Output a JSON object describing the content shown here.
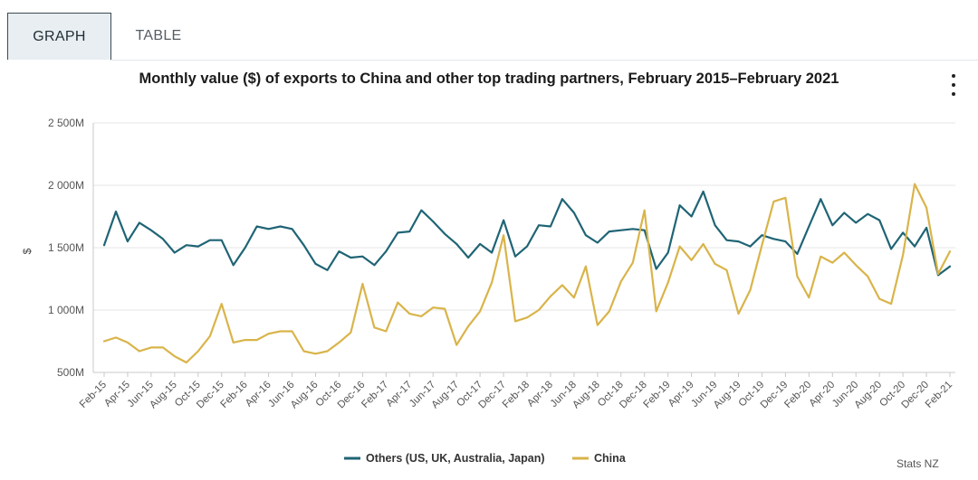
{
  "tabs": [
    {
      "label": "GRAPH",
      "active": true
    },
    {
      "label": "TABLE",
      "active": false
    }
  ],
  "source": "Stats NZ",
  "menu_icon": "kebab-menu-icon",
  "colors": {
    "others": "#1f6475",
    "china": "#d9b44a",
    "grid": "#e6e6e6",
    "axis": "#c8c8c8"
  },
  "chart_data": {
    "type": "line",
    "title": "Monthly value ($) of exports to China and other top trading partners, February 2015–February 2021",
    "ylabel": "$",
    "xlabel": "",
    "ylim": [
      500,
      2500
    ],
    "y_ticks": [
      500,
      1000,
      1500,
      2000,
      2500
    ],
    "y_tick_labels": [
      "500M",
      "1 000M",
      "1 500M",
      "2 000M",
      "2 500M"
    ],
    "x_tick_labels": [
      "Feb-15",
      "Apr-15",
      "Jun-15",
      "Aug-15",
      "Oct-15",
      "Dec-15",
      "Feb-16",
      "Apr-16",
      "Jun-16",
      "Aug-16",
      "Oct-16",
      "Dec-16",
      "Feb-17",
      "Apr-17",
      "Jun-17",
      "Aug-17",
      "Oct-17",
      "Dec-17",
      "Feb-18",
      "Apr-18",
      "Jun-18",
      "Aug-18",
      "Oct-18",
      "Dec-18",
      "Feb-19",
      "Apr-19",
      "Jun-19",
      "Aug-19",
      "Oct-19",
      "Dec-19",
      "Feb-20",
      "Apr-20",
      "Jun-20",
      "Aug-20",
      "Oct-20",
      "Dec-20",
      "Feb-21"
    ],
    "legend": "bottom-center",
    "grid": true,
    "series": [
      {
        "name": "Others (US, UK, Australia, Japan)",
        "color": "#1f6475",
        "values": [
          1520,
          1790,
          1550,
          1700,
          1640,
          1570,
          1460,
          1520,
          1510,
          1560,
          1560,
          1360,
          1500,
          1670,
          1650,
          1670,
          1650,
          1520,
          1370,
          1320,
          1470,
          1420,
          1430,
          1360,
          1470,
          1620,
          1630,
          1800,
          1710,
          1610,
          1530,
          1420,
          1530,
          1460,
          1720,
          1430,
          1510,
          1680,
          1670,
          1890,
          1780,
          1600,
          1540,
          1630,
          1640,
          1650,
          1640,
          1330,
          1460,
          1840,
          1750,
          1950,
          1680,
          1560,
          1550,
          1510,
          1600,
          1570,
          1550,
          1450,
          1670,
          1890,
          1680,
          1780,
          1700,
          1770,
          1720,
          1490,
          1620,
          1510,
          1660,
          1280,
          1350
        ]
      },
      {
        "name": "China",
        "color": "#d9b44a",
        "values": [
          750,
          780,
          740,
          670,
          700,
          700,
          630,
          580,
          670,
          790,
          1050,
          740,
          760,
          760,
          810,
          830,
          830,
          670,
          650,
          670,
          740,
          820,
          1210,
          860,
          830,
          1060,
          970,
          950,
          1020,
          1010,
          720,
          870,
          990,
          1220,
          1600,
          910,
          940,
          1000,
          1110,
          1200,
          1100,
          1350,
          880,
          990,
          1230,
          1380,
          1800,
          990,
          1220,
          1510,
          1400,
          1530,
          1370,
          1320,
          970,
          1160,
          1520,
          1870,
          1900,
          1270,
          1100,
          1430,
          1380,
          1460,
          1360,
          1270,
          1090,
          1050,
          1440,
          2010,
          1820,
          1290,
          1470
        ]
      }
    ]
  }
}
